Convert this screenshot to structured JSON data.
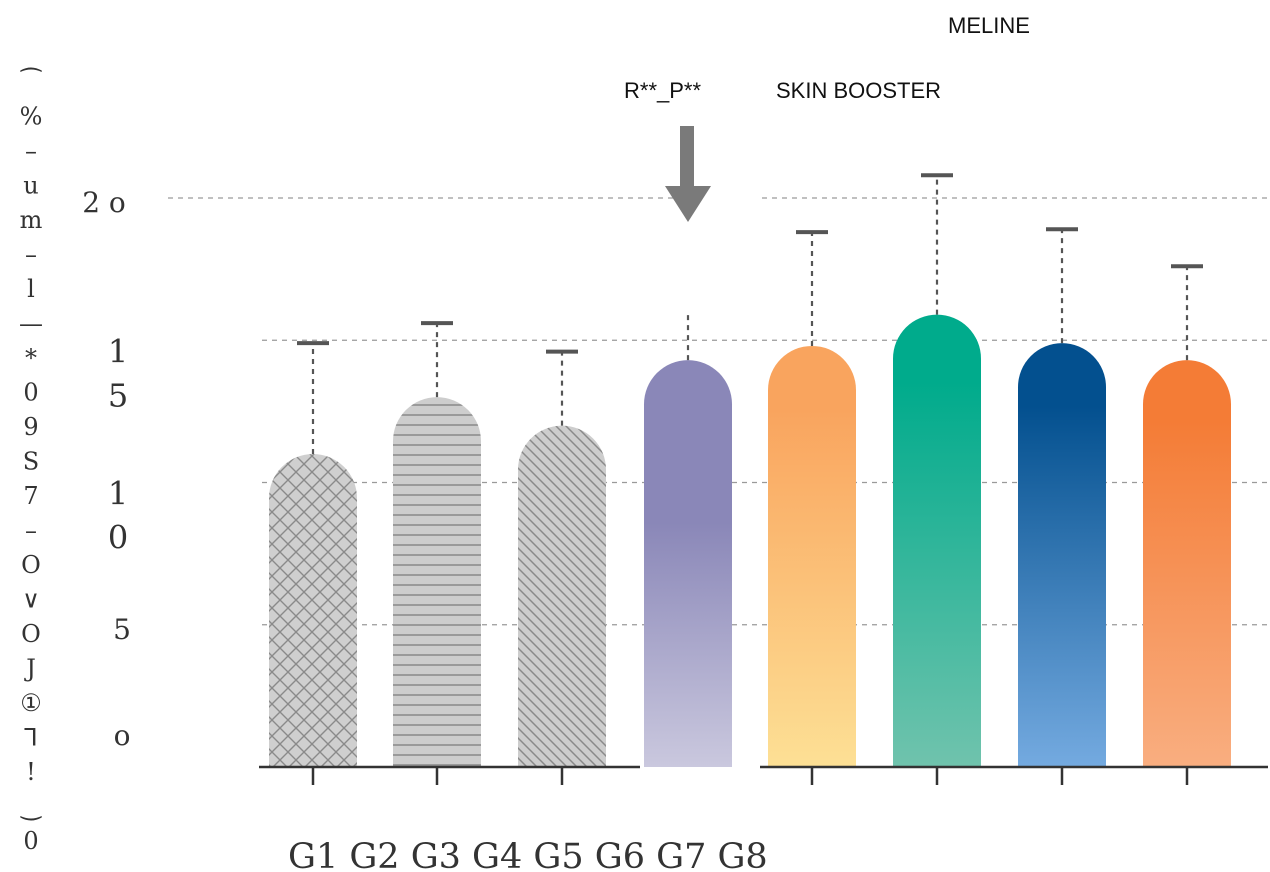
{
  "chart_data": {
    "type": "bar",
    "title": "",
    "xlabel": "",
    "ylabel_chars": [
      "⁀",
      "%",
      "–",
      "u",
      "m",
      "–",
      "l",
      "—",
      "*",
      "0",
      "9",
      "S",
      "7",
      "–",
      "O",
      "∨",
      "O",
      "J",
      "①",
      "⅂",
      "!",
      "‿",
      "0"
    ],
    "ylim": [
      0,
      20
    ],
    "grid": true,
    "y_ticks": [
      {
        "value": 20,
        "lines": [
          "2 o"
        ]
      },
      {
        "value": 15,
        "lines": [
          "1",
          "5"
        ]
      },
      {
        "value": 10,
        "lines": [
          "1",
          "0"
        ]
      },
      {
        "value": 5,
        "lines": [
          "5"
        ]
      },
      {
        "value": 0,
        "lines": [
          "o"
        ]
      }
    ],
    "x_axis_text": "G1 G2 G3 G4 G5 G6 G7 G8",
    "categories": [
      "G1",
      "G2",
      "G3",
      "G4",
      "G5",
      "G6",
      "G7",
      "G8"
    ],
    "values": [
      11,
      13,
      12,
      14.3,
      14.8,
      15.9,
      14.9,
      14.3
    ],
    "errors": [
      14.9,
      15.6,
      14.6,
      15.9,
      18.8,
      20.8,
      18.9,
      17.6
    ],
    "annotations": {
      "arrow_label": "R**_P**",
      "group_label_1": "SKIN BOOSTER",
      "group_label_2": "MELINE"
    },
    "series_style": [
      {
        "fill": "crosshatch",
        "color": "#c8c8c8"
      },
      {
        "fill": "horizontal-lines",
        "color": "#c8c8c8"
      },
      {
        "fill": "diagonal-lines",
        "color": "#c8c8c8"
      },
      {
        "fill": "gradient",
        "top": "#8a87b8",
        "bottom": "#cac8de"
      },
      {
        "fill": "gradient",
        "top": "#f9a45e",
        "bottom": "#fde095"
      },
      {
        "fill": "gradient",
        "top": "#00ab8c",
        "bottom": "#70c3ad"
      },
      {
        "fill": "gradient",
        "top": "#03508f",
        "bottom": "#74aae0"
      },
      {
        "fill": "gradient",
        "top": "#f47c36",
        "bottom": "#f9ae80"
      }
    ]
  }
}
